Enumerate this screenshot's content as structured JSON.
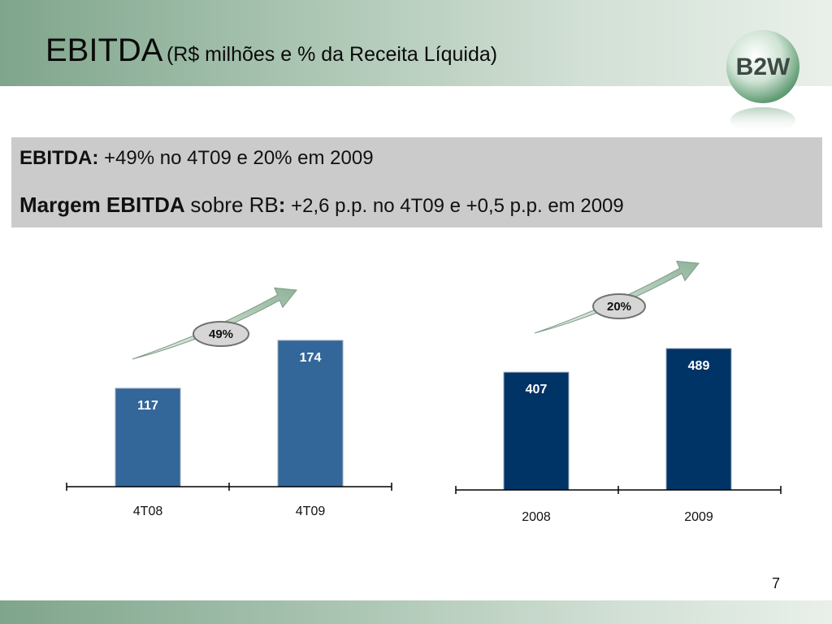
{
  "header": {
    "title": "EBITDA",
    "subtitle": "(R$ milhões e % da Receita Líquida)",
    "logo_text": "B2W"
  },
  "summary": {
    "line1_label": "EBITDA:",
    "line1_text": "+49% no 4T09 e 20% em 2009",
    "line2_label": "Margem EBITDA",
    "line2_mid": "sobre RB",
    "line2_colon": ":",
    "line2_text": "+2,6 p.p. no 4T09 e +0,5 p.p. em 2009"
  },
  "chart_data": [
    {
      "type": "bar",
      "categories": [
        "4T08",
        "4T09"
      ],
      "values": [
        117,
        174
      ],
      "growth_label": "49%",
      "bar_color": "#336699"
    },
    {
      "type": "bar",
      "categories": [
        "2008",
        "2009"
      ],
      "values": [
        407,
        489
      ],
      "growth_label": "20%",
      "bar_color": "#003366"
    }
  ],
  "page_number": "7"
}
